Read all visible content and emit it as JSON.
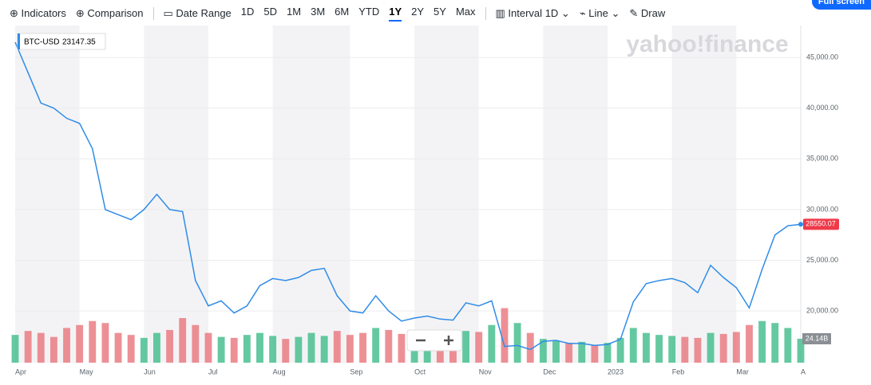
{
  "toolbar": {
    "indicators": "Indicators",
    "comparison": "Comparison",
    "date_range": "Date Range",
    "ranges": [
      "1D",
      "5D",
      "1M",
      "3M",
      "6M",
      "YTD",
      "1Y",
      "2Y",
      "5Y",
      "Max"
    ],
    "selected_range_index": 6,
    "interval": "Interval",
    "interval_value": "1D",
    "chart_style": "Line",
    "draw": "Draw",
    "full_screen": "Full screen"
  },
  "logo": "yahoo!finance",
  "chart_data": {
    "type": "line",
    "categories": [
      "Apr",
      null,
      null,
      null,
      null,
      "May",
      null,
      null,
      null,
      null,
      "Jun",
      null,
      null,
      null,
      null,
      "Jul",
      null,
      null,
      null,
      null,
      "Aug",
      null,
      null,
      null,
      null,
      null,
      "Sep",
      null,
      null,
      null,
      null,
      "Oct",
      null,
      null,
      null,
      null,
      "Nov",
      null,
      null,
      null,
      null,
      "Dec",
      null,
      null,
      null,
      null,
      "2023",
      null,
      null,
      null,
      null,
      "Feb",
      null,
      null,
      null,
      null,
      "Mar",
      null,
      null,
      null,
      null,
      "A"
    ],
    "series": [
      {
        "name": "BTC-USD",
        "color": "#2f8ce8",
        "values": [
          46500,
          43500,
          40500,
          40000,
          39000,
          38500,
          36000,
          30000,
          29500,
          29000,
          30000,
          31500,
          30000,
          29800,
          23000,
          20500,
          21000,
          19800,
          20500,
          22500,
          23200,
          23000,
          23300,
          24000,
          24200,
          21500,
          20000,
          19800,
          21500,
          20000,
          19000,
          19300,
          19500,
          19200,
          19100,
          20800,
          20500,
          21000,
          16500,
          16600,
          16200,
          17000,
          17100,
          16800,
          16800,
          16600,
          16700,
          17200,
          20900,
          22700,
          23000,
          23200,
          22800,
          21800,
          24500,
          23300,
          22300,
          20300,
          24100,
          27500,
          28400,
          28550
        ]
      }
    ],
    "volume": {
      "values": [
        28,
        32,
        30,
        26,
        35,
        38,
        42,
        40,
        30,
        28,
        25,
        30,
        33,
        45,
        38,
        30,
        26,
        25,
        28,
        30,
        27,
        24,
        26,
        30,
        27,
        32,
        28,
        30,
        35,
        33,
        29,
        28,
        25,
        30,
        27,
        32,
        31,
        38,
        55,
        40,
        30,
        24,
        22,
        20,
        21,
        18,
        20,
        25,
        35,
        30,
        28,
        27,
        26,
        25,
        30,
        29,
        31,
        38,
        42,
        40,
        35,
        24.14
      ],
      "last_label": "24.14B",
      "up_color": "#3dbb8a",
      "down_color": "#e8747c"
    },
    "y2lim": [
      0,
      340
    ],
    "tooltip": {
      "symbol": "BTC-USD",
      "value": 23147.35
    },
    "current_price": 28550.07,
    "ylim": [
      14900,
      48150
    ],
    "yticks": [
      {
        "value": 20000,
        "label": "20,000.00"
      },
      {
        "value": 25000,
        "label": "25,000.00"
      },
      {
        "value": 30000,
        "label": "30,000.00"
      },
      {
        "value": 35000,
        "label": "35,000.00"
      },
      {
        "value": 40000,
        "label": "40,000.00"
      },
      {
        "value": 45000,
        "label": "45,000.00"
      }
    ],
    "grid": true
  }
}
